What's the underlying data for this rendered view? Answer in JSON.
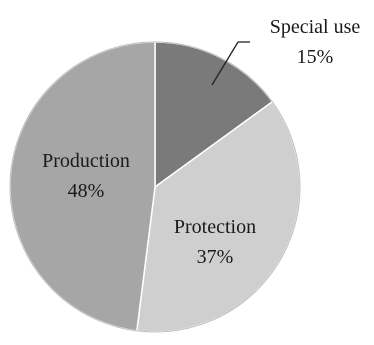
{
  "chart_data": {
    "type": "pie",
    "slices": [
      {
        "label": "Special use",
        "value": 15,
        "value_label": "15%",
        "color": "#7a7a7a"
      },
      {
        "label": "Protection",
        "value": 37,
        "value_label": "37%",
        "color": "#cfcfcf"
      },
      {
        "label": "Production",
        "value": 48,
        "value_label": "48%",
        "color": "#a6a6a6"
      }
    ],
    "start": "12 o'clock",
    "direction": "clockwise",
    "legend": "none"
  }
}
